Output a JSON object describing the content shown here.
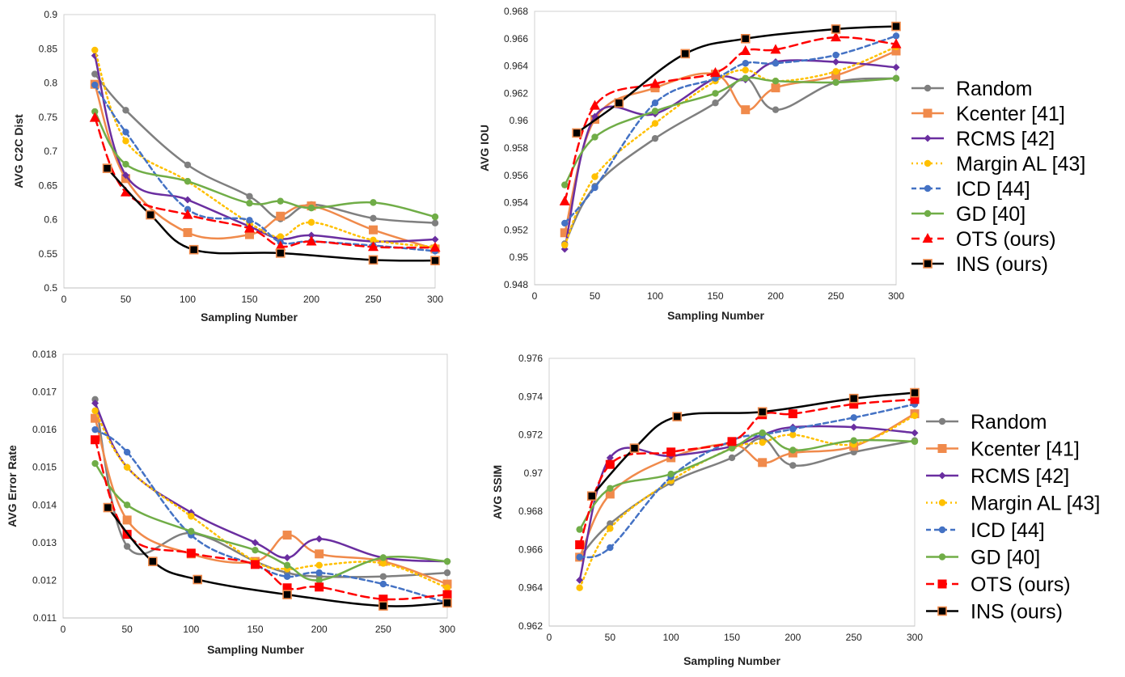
{
  "series_styles": [
    {
      "name": "Random",
      "color": "#7f7f7f",
      "marker": "circle",
      "dash": "",
      "width": 2.5
    },
    {
      "name": "Kcenter [41]",
      "color": "#f08a4b",
      "marker": "square",
      "dash": "",
      "width": 2.5
    },
    {
      "name": "RCMS [42]",
      "color": "#6a2ea0",
      "marker": "diamond",
      "dash": "",
      "width": 2.5
    },
    {
      "name": "Margin AL [43]",
      "color": "#ffc000",
      "marker": "circle",
      "dash": "2,4",
      "width": 2.5
    },
    {
      "name": "ICD [44]",
      "color": "#4472c4",
      "marker": "circle",
      "dash": "6,4",
      "width": 2.5
    },
    {
      "name": "GD [40]",
      "color": "#70ad47",
      "marker": "circle",
      "dash": "",
      "width": 2.5
    },
    {
      "name": "OTS (ours)",
      "color": "#ff0000",
      "marker": "triangle",
      "dash": "10,6",
      "width": 2.5
    },
    {
      "name": "INS (ours)",
      "color": "#000000",
      "marker": "bigsquare",
      "dash": "",
      "width": 2.5
    }
  ],
  "chart_data": [
    {
      "id": "c2c",
      "type": "line",
      "title": "",
      "xlabel": "Sampling Number",
      "ylabel": "AVG C2C Dist",
      "xlim": [
        0,
        300
      ],
      "ylim": [
        0.5,
        0.9
      ],
      "xticks": [
        0,
        50,
        100,
        150,
        200,
        250,
        300
      ],
      "yticks": [
        0.5,
        0.55,
        0.6,
        0.65,
        0.7,
        0.75,
        0.8,
        0.85,
        0.9
      ],
      "ytick_labels": [
        "0.5",
        "0.55",
        "0.6",
        "0.65",
        "0.7",
        "0.75",
        "0.8",
        "0.85",
        "0.9"
      ],
      "legend": "right",
      "series": [
        {
          "name": "Random",
          "x": [
            25,
            50,
            100,
            150,
            175,
            200,
            250,
            300
          ],
          "y": [
            0.813,
            0.76,
            0.68,
            0.634,
            0.601,
            0.622,
            0.602,
            0.595
          ]
        },
        {
          "name": "Kcenter [41]",
          "x": [
            25,
            50,
            100,
            150,
            175,
            200,
            250,
            300
          ],
          "y": [
            0.798,
            0.66,
            0.581,
            0.578,
            0.605,
            0.62,
            0.585,
            0.557
          ]
        },
        {
          "name": "RCMS [42]",
          "x": [
            25,
            50,
            100,
            150,
            175,
            200,
            250,
            300
          ],
          "y": [
            0.84,
            0.665,
            0.629,
            0.59,
            0.572,
            0.577,
            0.568,
            0.571
          ]
        },
        {
          "name": "Margin AL [43]",
          "x": [
            25,
            50,
            100,
            150,
            175,
            200,
            250,
            300
          ],
          "y": [
            0.848,
            0.715,
            0.656,
            0.595,
            0.575,
            0.596,
            0.57,
            0.56
          ]
        },
        {
          "name": "ICD [44]",
          "x": [
            25,
            50,
            100,
            150,
            175,
            200,
            250,
            300
          ],
          "y": [
            0.797,
            0.728,
            0.615,
            0.599,
            0.567,
            0.568,
            0.562,
            0.554
          ]
        },
        {
          "name": "GD [40]",
          "x": [
            25,
            50,
            100,
            150,
            175,
            200,
            250,
            300
          ],
          "y": [
            0.758,
            0.681,
            0.656,
            0.624,
            0.627,
            0.617,
            0.625,
            0.604
          ]
        },
        {
          "name": "OTS (ours)",
          "x": [
            25,
            50,
            100,
            150,
            175,
            200,
            250,
            300
          ],
          "y": [
            0.749,
            0.64,
            0.607,
            0.587,
            0.561,
            0.568,
            0.56,
            0.559
          ]
        },
        {
          "name": "INS (ours)",
          "x": [
            35,
            70,
            105,
            175,
            250,
            300
          ],
          "y": [
            0.675,
            0.607,
            0.556,
            0.551,
            0.541,
            0.54
          ]
        }
      ]
    },
    {
      "id": "iou",
      "type": "line",
      "title": "",
      "xlabel": "Sampling Number",
      "ylabel": "AVG IOU",
      "xlim": [
        0,
        300
      ],
      "ylim": [
        0.948,
        0.968
      ],
      "xticks": [
        0,
        50,
        100,
        150,
        200,
        250,
        300
      ],
      "yticks": [
        0.948,
        0.95,
        0.952,
        0.954,
        0.956,
        0.958,
        0.96,
        0.962,
        0.964,
        0.966,
        0.968
      ],
      "ytick_labels": [
        "0.948",
        "0.95",
        "0.952",
        "0.954",
        "0.956",
        "0.958",
        "0.96",
        "0.962",
        "0.964",
        "0.966",
        "0.968"
      ],
      "legend": "right",
      "series": [
        {
          "name": "Random",
          "x": [
            25,
            50,
            100,
            150,
            175,
            200,
            250,
            300
          ],
          "y": [
            0.951,
            0.9552,
            0.9587,
            0.9613,
            0.9631,
            0.9608,
            0.9628,
            0.9631
          ]
        },
        {
          "name": "Kcenter [41]",
          "x": [
            25,
            50,
            100,
            150,
            175,
            200,
            250,
            300
          ],
          "y": [
            0.9518,
            0.9601,
            0.9624,
            0.9634,
            0.9608,
            0.9624,
            0.9633,
            0.9651
          ]
        },
        {
          "name": "RCMS [42]",
          "x": [
            25,
            50,
            100,
            150,
            175,
            200,
            250,
            300
          ],
          "y": [
            0.9506,
            0.9603,
            0.9605,
            0.9631,
            0.963,
            0.9643,
            0.9643,
            0.9639
          ]
        },
        {
          "name": "Margin AL [43]",
          "x": [
            25,
            50,
            100,
            150,
            175,
            200,
            250,
            300
          ],
          "y": [
            0.9509,
            0.9559,
            0.9598,
            0.9629,
            0.9637,
            0.9629,
            0.9636,
            0.9654
          ]
        },
        {
          "name": "ICD [44]",
          "x": [
            25,
            50,
            100,
            150,
            175,
            200,
            250,
            300
          ],
          "y": [
            0.9525,
            0.9551,
            0.9613,
            0.9631,
            0.9642,
            0.9642,
            0.9648,
            0.9662
          ]
        },
        {
          "name": "GD [40]",
          "x": [
            25,
            50,
            100,
            150,
            175,
            200,
            250,
            300
          ],
          "y": [
            0.9553,
            0.9588,
            0.9607,
            0.962,
            0.9631,
            0.9629,
            0.9628,
            0.9631
          ]
        },
        {
          "name": "OTS (ours)",
          "x": [
            25,
            50,
            100,
            150,
            175,
            200,
            250,
            300
          ],
          "y": [
            0.9541,
            0.9611,
            0.9627,
            0.9635,
            0.9651,
            0.9652,
            0.9661,
            0.9656
          ]
        },
        {
          "name": "INS (ours)",
          "x": [
            35,
            70,
            125,
            175,
            250,
            300
          ],
          "y": [
            0.9591,
            0.9613,
            0.9649,
            0.966,
            0.9667,
            0.9669
          ]
        }
      ]
    },
    {
      "id": "err",
      "type": "line",
      "title": "",
      "xlabel": "Sampling Number",
      "ylabel": "AVG Error Rate",
      "xlim": [
        0,
        300
      ],
      "ylim": [
        0.011,
        0.018
      ],
      "xticks": [
        0,
        50,
        100,
        150,
        200,
        250,
        300
      ],
      "yticks": [
        0.011,
        0.012,
        0.013,
        0.014,
        0.015,
        0.016,
        0.017,
        0.018
      ],
      "ytick_labels": [
        "0.011",
        "0.012",
        "0.013",
        "0.014",
        "0.015",
        "0.016",
        "0.017",
        "0.018"
      ],
      "legend": "none",
      "series": [
        {
          "name": "Random",
          "x": [
            25,
            50,
            100,
            150,
            175,
            200,
            250,
            300
          ],
          "y": [
            0.0168,
            0.0129,
            0.01325,
            0.0125,
            0.0122,
            0.0121,
            0.0121,
            0.0122
          ]
        },
        {
          "name": "Kcenter [41]",
          "x": [
            25,
            50,
            100,
            150,
            175,
            200,
            250,
            300
          ],
          "y": [
            0.0163,
            0.0136,
            0.0127,
            0.0125,
            0.0132,
            0.0127,
            0.0125,
            0.0119
          ]
        },
        {
          "name": "RCMS [42]",
          "x": [
            25,
            50,
            100,
            150,
            175,
            200,
            250,
            300
          ],
          "y": [
            0.0167,
            0.015,
            0.0138,
            0.013,
            0.0126,
            0.0131,
            0.0126,
            0.0125
          ]
        },
        {
          "name": "Margin AL [43]",
          "x": [
            25,
            50,
            100,
            150,
            175,
            200,
            250,
            300
          ],
          "y": [
            0.0165,
            0.015,
            0.0137,
            0.0125,
            0.0123,
            0.0124,
            0.01245,
            0.0118
          ]
        },
        {
          "name": "ICD [44]",
          "x": [
            25,
            50,
            100,
            150,
            175,
            200,
            250,
            300
          ],
          "y": [
            0.016,
            0.0154,
            0.0132,
            0.0124,
            0.0121,
            0.0122,
            0.0119,
            0.0114
          ]
        },
        {
          "name": "GD [40]",
          "x": [
            25,
            50,
            100,
            150,
            175,
            200,
            250,
            300
          ],
          "y": [
            0.0151,
            0.014,
            0.0133,
            0.0128,
            0.0124,
            0.012,
            0.0126,
            0.0125
          ]
        },
        {
          "name": "OTS (ours)",
          "x": [
            25,
            50,
            100,
            150,
            175,
            200,
            250,
            300
          ],
          "y": [
            0.01573,
            0.01322,
            0.01272,
            0.01242,
            0.0118,
            0.01182,
            0.0115,
            0.01162
          ]
        },
        {
          "name": "INS (ours)",
          "x": [
            35,
            70,
            105,
            175,
            250,
            300
          ],
          "y": [
            0.01393,
            0.0125,
            0.01202,
            0.01162,
            0.01132,
            0.0114
          ]
        }
      ]
    },
    {
      "id": "ssim",
      "type": "line",
      "title": "",
      "xlabel": "Sampling Number",
      "ylabel": "AVG SSIM",
      "xlim": [
        0,
        300
      ],
      "ylim": [
        0.962,
        0.976
      ],
      "xticks": [
        0,
        50,
        100,
        150,
        200,
        250,
        300
      ],
      "yticks": [
        0.962,
        0.964,
        0.966,
        0.968,
        0.97,
        0.972,
        0.974,
        0.976
      ],
      "ytick_labels": [
        "0.962",
        "0.964",
        "0.966",
        "0.968",
        "0.97",
        "0.972",
        "0.974",
        "0.976"
      ],
      "legend": "right",
      "series": [
        {
          "name": "Random",
          "x": [
            25,
            50,
            100,
            150,
            175,
            200,
            250,
            300
          ],
          "y": [
            0.9656,
            0.96735,
            0.9695,
            0.9708,
            0.9718,
            0.9704,
            0.9711,
            0.9717
          ]
        },
        {
          "name": "Kcenter [41]",
          "x": [
            25,
            50,
            100,
            150,
            175,
            200,
            250,
            300
          ],
          "y": [
            0.9656,
            0.9689,
            0.9708,
            0.9715,
            0.97055,
            0.97105,
            0.9714,
            0.9731
          ]
        },
        {
          "name": "RCMS [42]",
          "x": [
            25,
            50,
            100,
            150,
            175,
            200,
            250,
            300
          ],
          "y": [
            0.9644,
            0.9708,
            0.9709,
            0.9714,
            0.972,
            0.9724,
            0.9724,
            0.9721
          ]
        },
        {
          "name": "Margin AL [43]",
          "x": [
            25,
            50,
            100,
            150,
            175,
            200,
            250,
            300
          ],
          "y": [
            0.964,
            0.9671,
            0.9696,
            0.9713,
            0.9716,
            0.972,
            0.9715,
            0.973
          ]
        },
        {
          "name": "ICD [44]",
          "x": [
            25,
            50,
            100,
            150,
            175,
            200,
            250,
            300
          ],
          "y": [
            0.9656,
            0.9661,
            0.9698,
            0.9717,
            0.972,
            0.9723,
            0.9729,
            0.9736
          ]
        },
        {
          "name": "GD [40]",
          "x": [
            25,
            50,
            100,
            150,
            175,
            200,
            250,
            300
          ],
          "y": [
            0.96705,
            0.9692,
            0.96995,
            0.9713,
            0.9721,
            0.9712,
            0.9717,
            0.97165
          ]
        },
        {
          "name": "OTS (ours)",
          "x": [
            25,
            50,
            100,
            150,
            175,
            200,
            250,
            300
          ],
          "y": [
            0.96625,
            0.97045,
            0.9711,
            0.97165,
            0.97305,
            0.9731,
            0.9736,
            0.97385
          ]
        },
        {
          "name": "INS (ours)",
          "x": [
            35,
            70,
            105,
            175,
            250,
            300
          ],
          "y": [
            0.9688,
            0.9713,
            0.97295,
            0.9732,
            0.9739,
            0.9742
          ]
        }
      ]
    }
  ]
}
